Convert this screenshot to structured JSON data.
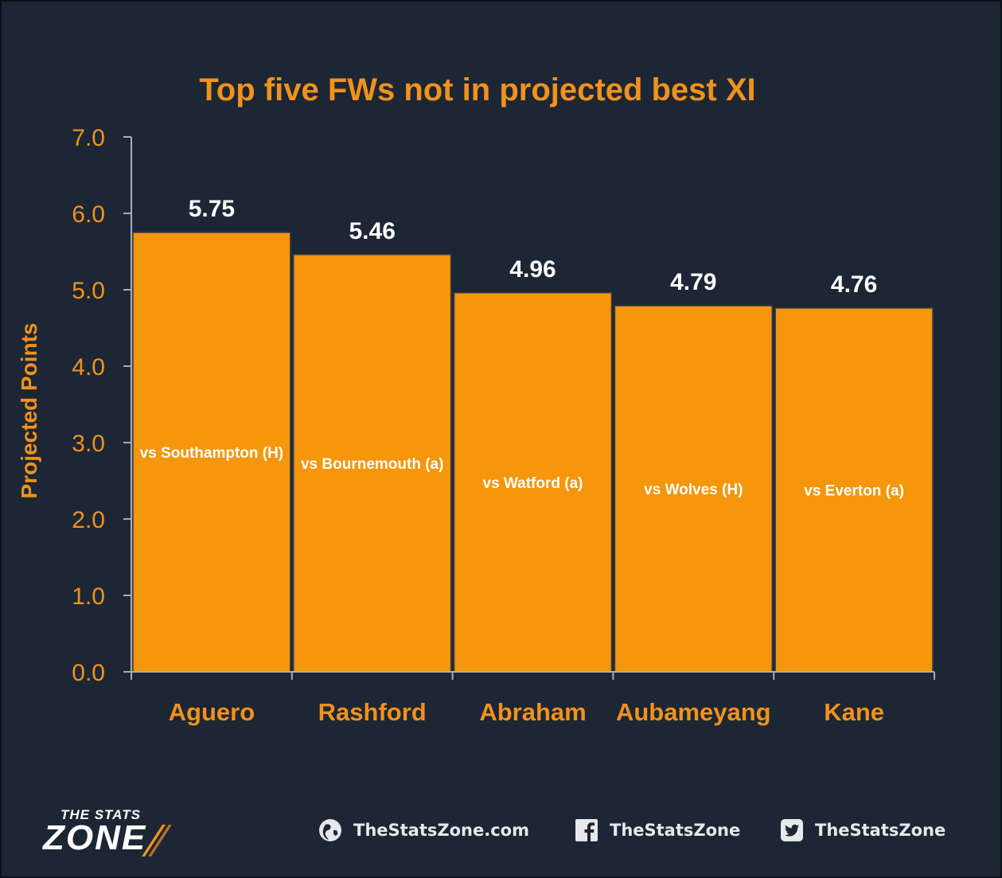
{
  "chart_data": {
    "type": "bar",
    "title": "Top five FWs not in projected best XI",
    "ylabel": "Projected Points",
    "xlabel": "",
    "ylim": [
      0,
      7
    ],
    "yticks": [
      "0.0",
      "1.0",
      "2.0",
      "3.0",
      "4.0",
      "5.0",
      "6.0",
      "7.0"
    ],
    "categories": [
      "Aguero",
      "Rashford",
      "Abraham",
      "Aubameyang",
      "Kane"
    ],
    "values": [
      5.75,
      5.46,
      4.96,
      4.79,
      4.76
    ],
    "value_labels": [
      "5.75",
      "5.46",
      "4.96",
      "4.79",
      "4.76"
    ],
    "bar_annotations": [
      "vs Southampton (H)",
      "vs Bournemouth (a)",
      "vs Watford (a)",
      "vs Wolves (H)",
      "vs Everton (a)"
    ],
    "grid": false,
    "colors": {
      "bar": "#f5960c",
      "text": "#f0921c",
      "background": "#1d2634"
    }
  },
  "footer": {
    "logo_text_top": "THE STATS",
    "logo_text_main": "ZONE",
    "website": "TheStatsZone.com",
    "facebook": "TheStatsZone",
    "twitter": "TheStatsZone",
    "icons": [
      "globe-icon",
      "facebook-icon",
      "twitter-icon"
    ]
  }
}
